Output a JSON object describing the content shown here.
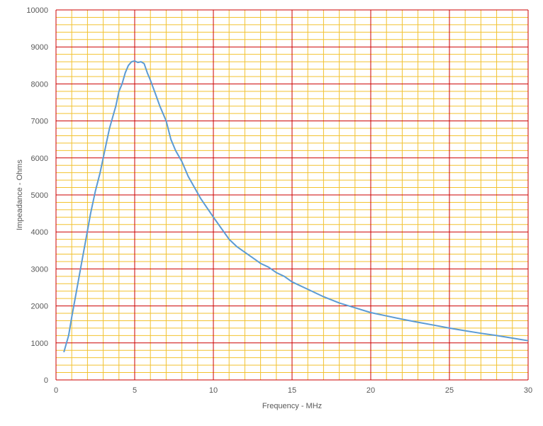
{
  "chart_data": {
    "type": "line",
    "xlabel": "Frequency - MHz",
    "ylabel": "Impeadance - Ohms",
    "xlim": [
      0,
      30
    ],
    "ylim": [
      0,
      10000
    ],
    "x_ticks": [
      0,
      5,
      10,
      15,
      20,
      25,
      30
    ],
    "x_tick_labels": [
      "0",
      "5",
      "10",
      "15",
      "20",
      "25",
      "30"
    ],
    "y_ticks": [
      0,
      1000,
      2000,
      3000,
      4000,
      5000,
      6000,
      7000,
      8000,
      9000,
      10000
    ],
    "y_tick_labels": [
      "0",
      "1000",
      "2000",
      "3000",
      "4000",
      "5000",
      "6000",
      "7000",
      "8000",
      "9000",
      "10000"
    ],
    "grid": {
      "major": true,
      "minor": true,
      "x_minor_step": 1,
      "y_minor_step": 200,
      "major_color": "#cc0000",
      "minor_color": "#f2c230"
    },
    "line_color": "#5b9bd5",
    "series": [
      {
        "x": [
          0.5,
          0.8,
          1.0,
          1.3,
          1.6,
          1.9,
          2.2,
          2.5,
          2.8,
          3.0,
          3.2,
          3.4,
          3.6,
          3.8,
          4.0,
          4.2,
          4.4,
          4.6,
          4.8,
          5.0,
          5.2,
          5.4,
          5.6,
          5.8,
          6.0,
          6.3,
          6.6,
          7.0,
          7.3,
          7.6,
          8.0,
          8.4,
          8.8,
          9.2,
          9.6,
          10.0,
          10.5,
          11.0,
          11.5,
          12.0,
          12.5,
          13.0,
          13.5,
          14.0,
          14.5,
          15.0,
          16.0,
          17.0,
          18.0,
          19.0,
          20.0,
          21.0,
          22.0,
          23.0,
          24.0,
          25.0,
          26.0,
          27.0,
          28.0,
          29.0,
          30.0
        ],
        "values": [
          750,
          1200,
          1700,
          2400,
          3100,
          3800,
          4500,
          5100,
          5600,
          6000,
          6400,
          6800,
          7100,
          7400,
          7800,
          8000,
          8300,
          8500,
          8600,
          8620,
          8580,
          8600,
          8550,
          8300,
          8100,
          7750,
          7400,
          7000,
          6500,
          6200,
          5900,
          5500,
          5200,
          4900,
          4650,
          4400,
          4100,
          3800,
          3600,
          3450,
          3300,
          3150,
          3050,
          2900,
          2800,
          2650,
          2450,
          2250,
          2080,
          1950,
          1820,
          1730,
          1640,
          1560,
          1480,
          1400,
          1330,
          1260,
          1200,
          1130,
          1060
        ]
      }
    ]
  }
}
